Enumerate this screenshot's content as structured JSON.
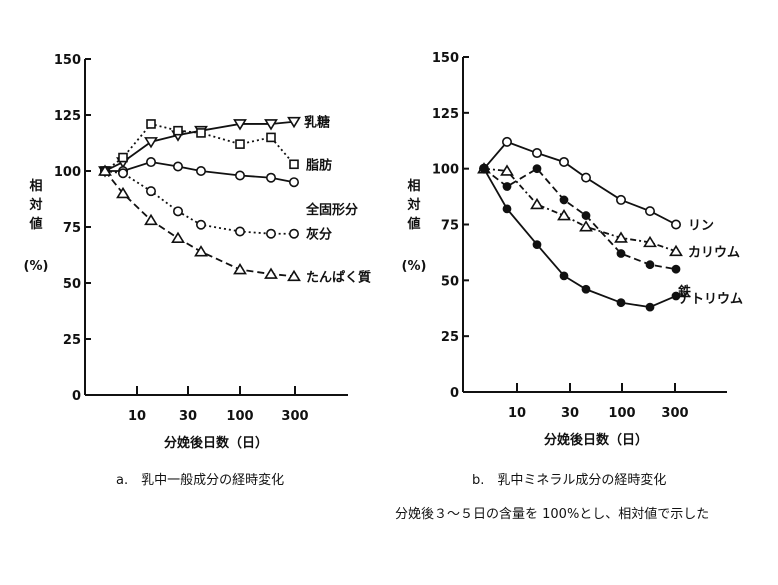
{
  "chart_data": [
    {
      "type": "line",
      "id": "a",
      "title": "a.　乳中一般成分の経時変化",
      "xlabel": "分娩後日数（日）",
      "ylabel": "相対値 (%)",
      "ylim": [
        0,
        150
      ],
      "yticks": [
        0,
        25,
        50,
        75,
        100,
        125,
        150
      ],
      "xscale": "log",
      "xticks": [
        "10",
        "30",
        "100",
        "300"
      ],
      "grid": false,
      "legend_position": "right, inline labels at line ends",
      "x_days_approx": [
        4,
        7,
        14,
        25,
        40,
        100,
        200,
        300
      ],
      "series": [
        {
          "name": "乳糖",
          "marker": "triangle-down",
          "line": "solid",
          "values": [
            100,
            104,
            113,
            116,
            118,
            121,
            121,
            122
          ]
        },
        {
          "name": "脂肪",
          "marker": "square",
          "line": "dotted",
          "values": [
            100,
            106,
            121,
            118,
            117,
            112,
            115,
            103
          ]
        },
        {
          "name": "全固形分",
          "marker": "circle-open",
          "line": "solid",
          "values": [
            100,
            100,
            104,
            102,
            100,
            98,
            97,
            95
          ]
        },
        {
          "name": "灰分",
          "marker": "circle-open",
          "line": "dotted",
          "values": [
            100,
            99,
            91,
            82,
            76,
            73,
            72,
            72
          ]
        },
        {
          "name": "たんぱく質",
          "marker": "triangle-up",
          "line": "dashed",
          "values": [
            100,
            90,
            78,
            70,
            64,
            56,
            54,
            53
          ]
        }
      ]
    },
    {
      "type": "line",
      "id": "b",
      "title": "b.　乳中ミネラル成分の経時変化",
      "xlabel": "分娩後日数（日）",
      "ylabel": "相対値 (%)",
      "ylim": [
        0,
        150
      ],
      "yticks": [
        0,
        25,
        50,
        75,
        100,
        125,
        150
      ],
      "xscale": "log",
      "xticks": [
        "10",
        "30",
        "100",
        "300"
      ],
      "grid": false,
      "legend_position": "right, inline labels at line ends",
      "x_days_approx": [
        4,
        7,
        14,
        25,
        40,
        100,
        200,
        300
      ],
      "series": [
        {
          "name": "リン",
          "marker": "circle-open",
          "line": "solid",
          "values": [
            100,
            112,
            107,
            103,
            96,
            86,
            81,
            75
          ]
        },
        {
          "name": "カリウム",
          "marker": "triangle-up",
          "line": "dashdot",
          "values": [
            100,
            99,
            84,
            79,
            74,
            69,
            67,
            63
          ]
        },
        {
          "name": "鉄",
          "marker": "circle-filled",
          "line": "dashed",
          "values": [
            100,
            92,
            100,
            86,
            79,
            62,
            57,
            55
          ]
        },
        {
          "name": "ナトリウム",
          "marker": "circle-filled",
          "line": "solid",
          "values": [
            100,
            82,
            66,
            52,
            46,
            40,
            38,
            43
          ]
        }
      ]
    }
  ],
  "captions": {
    "a": "a.　乳中一般成分の経時変化",
    "b": "b.　乳中ミネラル成分の経時変化",
    "note": "分娩後３～５日の含量を 100%とし、相対値で示した"
  },
  "axes": {
    "ylabel_chars": [
      "相",
      "対",
      "値"
    ],
    "ylabel_unit": "(%)",
    "xlabel": "分娩後日数（日）"
  }
}
